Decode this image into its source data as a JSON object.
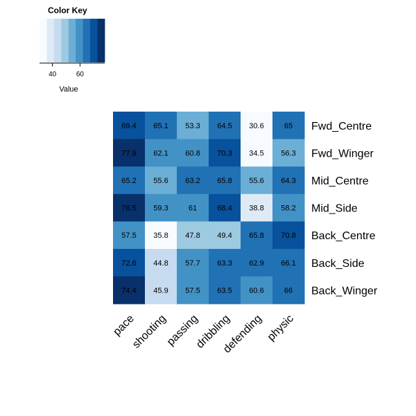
{
  "chart_data": {
    "type": "heatmap",
    "rows": [
      "Fwd_Centre",
      "Fwd_Winger",
      "Mid_Centre",
      "Mid_Side",
      "Back_Centre",
      "Back_Side",
      "Back_Winger"
    ],
    "columns": [
      "pace",
      "shooting",
      "passing",
      "dribbling",
      "defending",
      "physic"
    ],
    "values": [
      [
        69.4,
        65.1,
        53.3,
        64.5,
        30.6,
        65
      ],
      [
        77.9,
        62.1,
        60.8,
        70.3,
        34.5,
        56.3
      ],
      [
        65.2,
        55.6,
        63.2,
        65.8,
        55.6,
        64.3
      ],
      [
        76.5,
        59.3,
        61,
        68.4,
        38.8,
        58.2
      ],
      [
        57.5,
        35.8,
        47.8,
        49.4,
        65.8,
        70.8
      ],
      [
        72.6,
        44.8,
        57.7,
        63.3,
        62.9,
        66.1
      ],
      [
        74.4,
        45.9,
        57.5,
        63.5,
        60.6,
        66
      ]
    ],
    "value_labels": [
      [
        "69.4",
        "65.1",
        "53.3",
        "64.5",
        "30.6",
        "65"
      ],
      [
        "77.9",
        "62.1",
        "60.8",
        "70.3",
        "34.5",
        "56.3"
      ],
      [
        "65.2",
        "55.6",
        "63.2",
        "65.8",
        "55.6",
        "64.3"
      ],
      [
        "76.5",
        "59.3",
        "61",
        "68.4",
        "38.8",
        "58.2"
      ],
      [
        "57.5",
        "35.8",
        "47.8",
        "49.4",
        "65.8",
        "70.8"
      ],
      [
        "72.6",
        "44.8",
        "57.7",
        "63.3",
        "62.9",
        "66.1"
      ],
      [
        "74.4",
        "45.9",
        "57.5",
        "63.5",
        "60.6",
        "66"
      ]
    ],
    "color_key": {
      "title": "Color Key",
      "xlabel": "Value",
      "ticks": [
        "40",
        "60"
      ],
      "tick_values": [
        40,
        60
      ],
      "range": [
        30.6,
        77.9
      ],
      "palette": [
        "#f7fbff",
        "#deebf7",
        "#c6dbef",
        "#9ecae1",
        "#6baed6",
        "#4292c6",
        "#2171b5",
        "#08519c",
        "#08306b"
      ]
    }
  }
}
